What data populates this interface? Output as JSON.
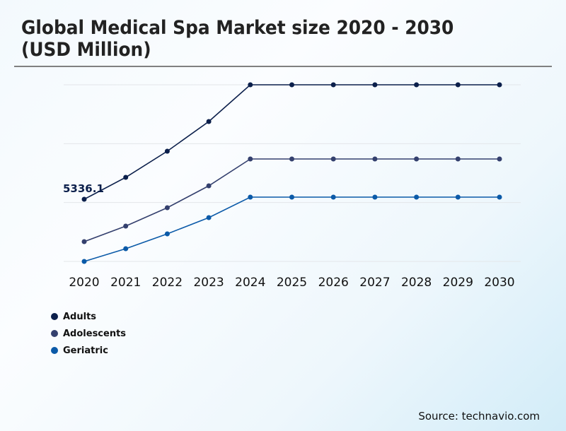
{
  "title": "Global Medical Spa Market size 2020 - 2030 (USD Million)",
  "source": "Source: technavio.com",
  "chart_data": {
    "type": "line",
    "title": "Global Medical Spa Market size 2020 - 2030 (USD Million)",
    "categories": [
      "2020",
      "2021",
      "2022",
      "2023",
      "2024",
      "2025",
      "2026",
      "2027",
      "2028",
      "2029",
      "2030"
    ],
    "ylim": [
      0,
      15161
    ],
    "grid": true,
    "legend_position": "bottom-left",
    "annotations": [
      {
        "series": "Adults",
        "category": "2020",
        "text": "5336.1"
      }
    ],
    "series": [
      {
        "name": "Adults",
        "color": "#0b1f4b",
        "values": [
          5336.1,
          7216,
          9460,
          12007,
          15161,
          15161,
          15161,
          15161,
          15161,
          15161,
          15161
        ]
      },
      {
        "name": "Adolescents",
        "color": "#34406e",
        "values": [
          1698,
          3032,
          4609,
          6489,
          8793,
          8793,
          8793,
          8793,
          8793,
          8793,
          8793
        ]
      },
      {
        "name": "Geriatric",
        "color": "#0b5aa8",
        "values": [
          0,
          1092,
          2366,
          3760,
          5518,
          5518,
          5518,
          5518,
          5518,
          5518,
          5518
        ]
      }
    ]
  }
}
